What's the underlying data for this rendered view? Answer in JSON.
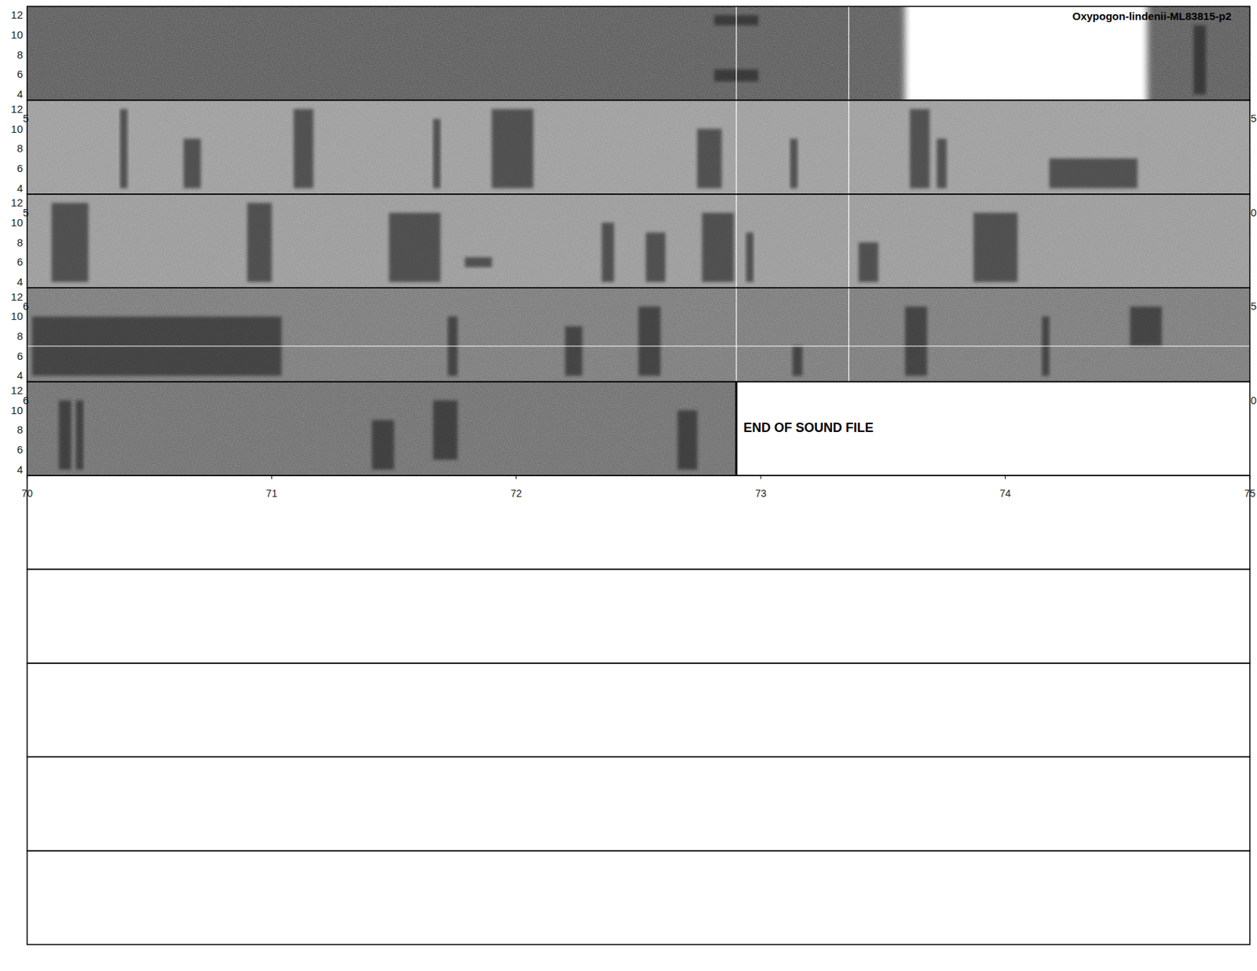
{
  "chart_data": {
    "type": "spectrogram",
    "title": "Oxypogon-lindenii-ML83815-p2",
    "annotation": "END OF SOUND FILE",
    "xlim": [
      70,
      75
    ],
    "xticks": [
      70,
      71,
      72,
      73,
      74,
      75
    ],
    "ylim": [
      3.4,
      12.9
    ],
    "yticks": [
      4,
      6,
      8,
      10,
      12
    ],
    "end_of_file": 72.9,
    "markers": [
      72.9,
      73.36
    ],
    "rows": [
      {
        "left_label": null,
        "right_label": null,
        "blank": [
          73.59,
          74.58
        ],
        "hline": null,
        "events": [
          {
            "start": 72.81,
            "end": 72.99,
            "fmin": 5.3,
            "fmax": 6.5
          },
          {
            "start": 72.81,
            "end": 72.99,
            "fmin": 11.0,
            "fmax": 12.0
          },
          {
            "start": 74.77,
            "end": 74.82,
            "fmin": 4,
            "fmax": 11
          }
        ]
      },
      {
        "left_label": "5",
        "right_label": "5",
        "blank": null,
        "hline": null,
        "events": [
          {
            "start": 70.38,
            "end": 70.41,
            "fmin": 4,
            "fmax": 12
          },
          {
            "start": 70.64,
            "end": 70.71,
            "fmin": 4,
            "fmax": 9
          },
          {
            "start": 71.09,
            "end": 71.17,
            "fmin": 4,
            "fmax": 12
          },
          {
            "start": 71.66,
            "end": 71.69,
            "fmin": 4,
            "fmax": 11
          },
          {
            "start": 71.9,
            "end": 72.07,
            "fmin": 4,
            "fmax": 12
          },
          {
            "start": 72.74,
            "end": 72.84,
            "fmin": 4,
            "fmax": 10
          },
          {
            "start": 73.12,
            "end": 73.15,
            "fmin": 4,
            "fmax": 9
          },
          {
            "start": 73.61,
            "end": 73.69,
            "fmin": 4,
            "fmax": 12
          },
          {
            "start": 73.72,
            "end": 73.76,
            "fmin": 4,
            "fmax": 9
          },
          {
            "start": 74.18,
            "end": 74.54,
            "fmin": 4,
            "fmax": 7
          }
        ]
      },
      {
        "left_label": "5",
        "right_label": "0",
        "blank": null,
        "hline": null,
        "events": [
          {
            "start": 70.1,
            "end": 70.25,
            "fmin": 4,
            "fmax": 12
          },
          {
            "start": 70.9,
            "end": 71.0,
            "fmin": 4,
            "fmax": 12
          },
          {
            "start": 71.48,
            "end": 71.69,
            "fmin": 4,
            "fmax": 11
          },
          {
            "start": 71.79,
            "end": 71.9,
            "fmin": 5.5,
            "fmax": 6.5
          },
          {
            "start": 72.35,
            "end": 72.4,
            "fmin": 4,
            "fmax": 10
          },
          {
            "start": 72.53,
            "end": 72.61,
            "fmin": 4,
            "fmax": 9
          },
          {
            "start": 72.76,
            "end": 72.89,
            "fmin": 4,
            "fmax": 11
          },
          {
            "start": 72.94,
            "end": 72.97,
            "fmin": 4,
            "fmax": 9
          },
          {
            "start": 73.4,
            "end": 73.48,
            "fmin": 4,
            "fmax": 8
          },
          {
            "start": 73.87,
            "end": 74.05,
            "fmin": 4,
            "fmax": 11
          }
        ]
      },
      {
        "left_label": "6",
        "right_label": "5",
        "blank": null,
        "hline": 7,
        "events": [
          {
            "start": 70.02,
            "end": 71.04,
            "fmin": 4,
            "fmax": 10
          },
          {
            "start": 71.72,
            "end": 71.76,
            "fmin": 4,
            "fmax": 10
          },
          {
            "start": 72.2,
            "end": 72.27,
            "fmin": 4,
            "fmax": 9
          },
          {
            "start": 72.5,
            "end": 72.59,
            "fmin": 4,
            "fmax": 11
          },
          {
            "start": 73.13,
            "end": 73.17,
            "fmin": 4,
            "fmax": 7
          },
          {
            "start": 73.59,
            "end": 73.68,
            "fmin": 4,
            "fmax": 11
          },
          {
            "start": 74.15,
            "end": 74.18,
            "fmin": 4,
            "fmax": 10
          },
          {
            "start": 74.51,
            "end": 74.64,
            "fmin": 7,
            "fmax": 11
          }
        ]
      },
      {
        "left_label": "6",
        "right_label": "0",
        "blank": null,
        "hline": null,
        "events": [
          {
            "start": 70.13,
            "end": 70.18,
            "fmin": 4,
            "fmax": 11
          },
          {
            "start": 70.2,
            "end": 70.23,
            "fmin": 4,
            "fmax": 11
          },
          {
            "start": 71.41,
            "end": 71.5,
            "fmin": 4,
            "fmax": 9
          },
          {
            "start": 71.66,
            "end": 71.76,
            "fmin": 5,
            "fmax": 11
          },
          {
            "start": 72.66,
            "end": 72.74,
            "fmin": 4,
            "fmax": 10
          }
        ]
      }
    ]
  }
}
